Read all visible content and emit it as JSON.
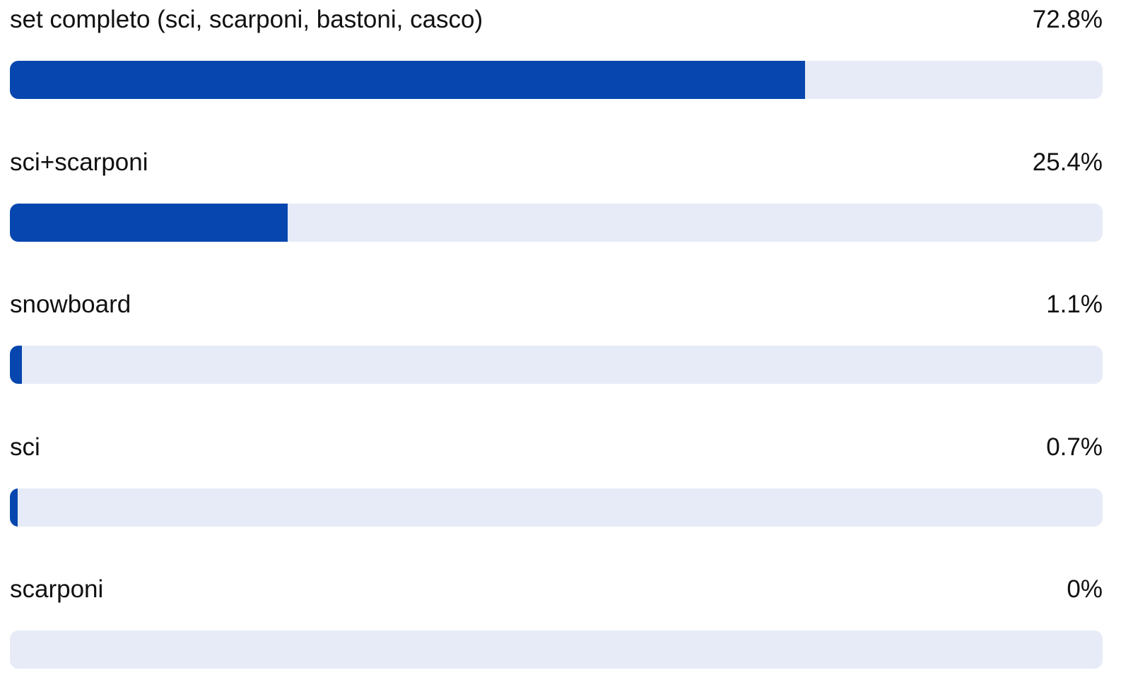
{
  "colors": {
    "bar_fill": "#0646ae",
    "bar_track": "#e6ebf7"
  },
  "chart_data": {
    "type": "bar",
    "orientation": "horizontal",
    "categories": [
      "set completo (sci, scarponi, bastoni, casco)",
      "sci+scarponi",
      "snowboard",
      "sci",
      "scarponi"
    ],
    "values": [
      72.8,
      25.4,
      1.1,
      0.7,
      0
    ],
    "value_labels": [
      "72.8%",
      "25.4%",
      "1.1%",
      "0.7%",
      "0%"
    ],
    "xlim": [
      0,
      100
    ],
    "unit": "%",
    "grid": false,
    "legend": "none"
  }
}
